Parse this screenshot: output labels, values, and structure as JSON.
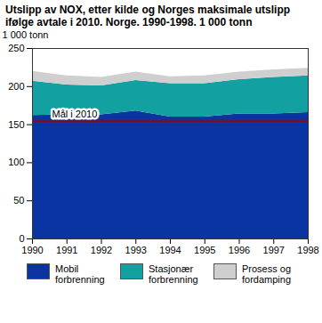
{
  "chart_data": {
    "type": "area",
    "stacked": true,
    "title": "Utslipp av NOX, etter kilde og Norges maksimale utslipp ifølge avtale i 2010. Norge. 1990-1998. 1 000 tonn",
    "y_label": "1 000 tonn",
    "x": [
      1990,
      1991,
      1992,
      1993,
      1994,
      1995,
      1996,
      1997,
      1998
    ],
    "series": [
      {
        "name": "Mobil forbrenning",
        "color": "#0b34a3",
        "values": [
          162,
          163,
          163,
          168,
          160,
          160,
          164,
          164,
          166
        ]
      },
      {
        "name": "Stasjonær forbrenning",
        "color": "#12a0a0",
        "values": [
          45,
          39,
          38,
          40,
          44,
          44,
          45,
          48,
          48
        ]
      },
      {
        "name": "Prosess og fordamping",
        "color": "#cfcfcf",
        "values": [
          13,
          12,
          11,
          11,
          9,
          10,
          10,
          10,
          10
        ]
      }
    ],
    "reference_line": {
      "value": 155,
      "label": "Mål i 2010",
      "color": "#a00000"
    },
    "xlim": [
      1990,
      1998
    ],
    "xticks": [
      1990,
      1991,
      1992,
      1993,
      1994,
      1995,
      1996,
      1997,
      1998
    ],
    "ylim": [
      0,
      250
    ],
    "yticks": [
      0,
      50,
      100,
      150,
      200,
      250
    ],
    "grid": true,
    "legend": "bottom"
  }
}
